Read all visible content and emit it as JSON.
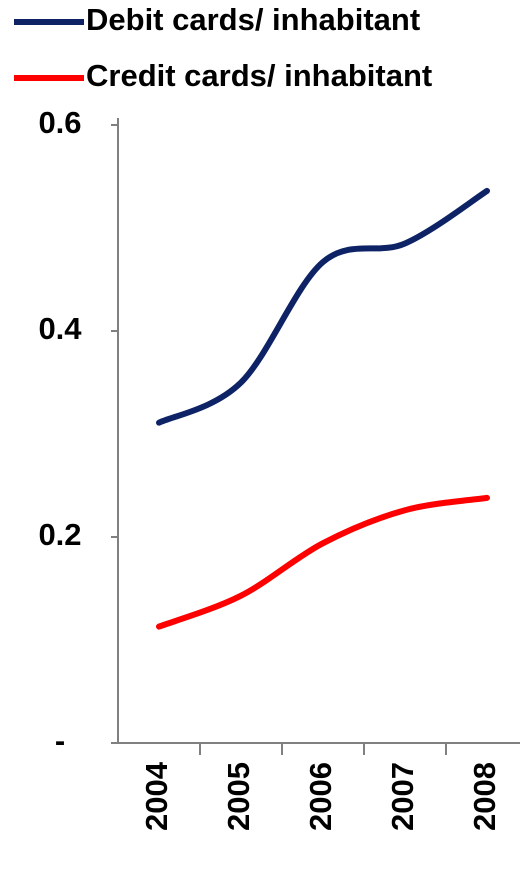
{
  "chart_data": {
    "type": "line",
    "categories": [
      "2004",
      "2005",
      "2006",
      "2007",
      "2008"
    ],
    "series": [
      {
        "name": "Debit cards/ inhabitant",
        "color": "#0d2366",
        "values": [
          0.311,
          0.35,
          0.467,
          0.485,
          0.536
        ]
      },
      {
        "name": "Credit cards/ inhabitant",
        "color": "#ff0000",
        "values": [
          0.113,
          0.143,
          0.194,
          0.226,
          0.238
        ]
      }
    ],
    "ylim": [
      0,
      0.6
    ],
    "yticks": [
      {
        "value": 0,
        "label": "-"
      },
      0.2,
      0.4,
      0.6
    ],
    "legend": "top-left",
    "smooth": true
  }
}
